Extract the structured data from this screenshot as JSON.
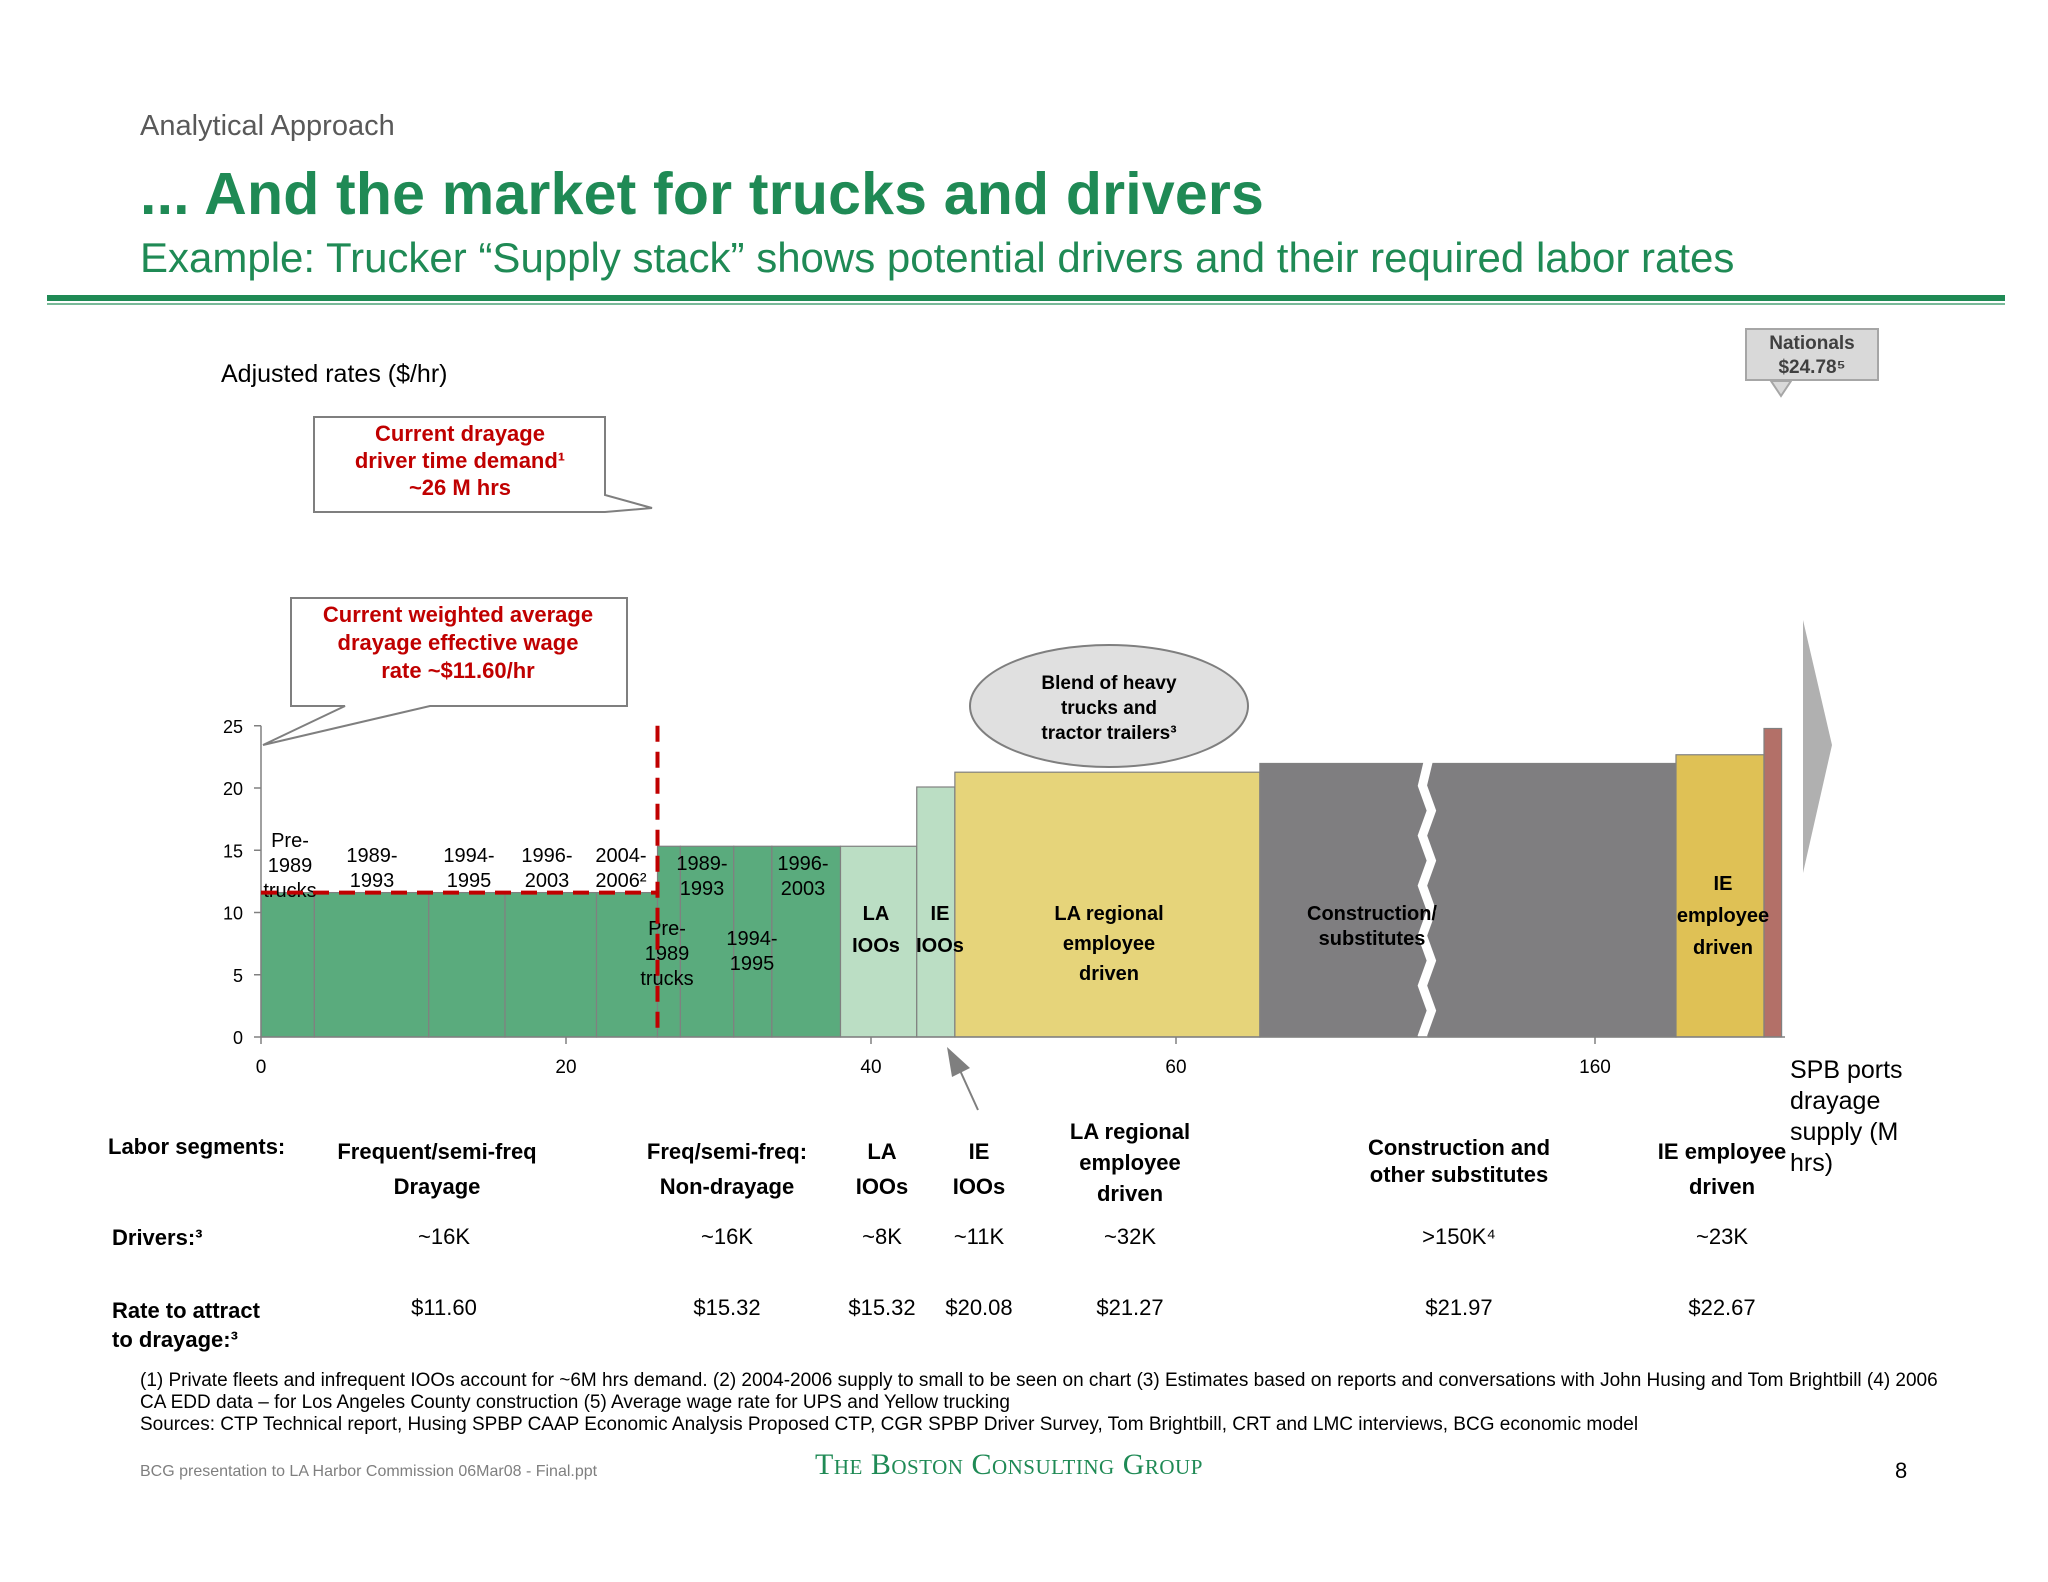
{
  "header": {
    "kicker": "Analytical Approach",
    "title": "... And the market for trucks and drivers",
    "subtitle": "Example: Trucker “Supply stack” shows potential drivers and their required labor rates"
  },
  "chart_data": {
    "type": "bar",
    "ylabel": "Adjusted rates ($/hr)",
    "xlabel": "SPB ports drayage supply (M hrs)",
    "ylim": [
      0,
      25
    ],
    "yticks": [
      0,
      5,
      10,
      15,
      20,
      25
    ],
    "xticks": [
      "0",
      "20",
      "40",
      "60",
      "160"
    ],
    "axis_break": "between 60 and 160",
    "grid": false,
    "segments": [
      {
        "label": [
          "Pre-",
          "1989",
          "trucks"
        ],
        "x_start": 0,
        "x_end": 3.5,
        "rate": 11.6,
        "color": "#5aab7d"
      },
      {
        "label": [
          "1989-",
          "1993"
        ],
        "x_start": 3.5,
        "x_end": 11,
        "rate": 11.6,
        "color": "#5aab7d"
      },
      {
        "label": [
          "1994-",
          "1995"
        ],
        "x_start": 11,
        "x_end": 16,
        "rate": 11.6,
        "color": "#5aab7d"
      },
      {
        "label": [
          "1996-",
          "2003"
        ],
        "x_start": 16,
        "x_end": 22,
        "rate": 11.6,
        "color": "#5aab7d"
      },
      {
        "label": [
          "2004-",
          "2006²"
        ],
        "x_start": 22,
        "x_end": 26,
        "rate": 11.6,
        "color": "#5aab7d"
      },
      {
        "label": [
          "Pre-",
          "1989",
          "trucks"
        ],
        "x_start": 26,
        "x_end": 27.5,
        "rate": 15.32,
        "color": "#5aab7d"
      },
      {
        "label": [
          "1989-",
          "1993"
        ],
        "x_start": 27.5,
        "x_end": 31,
        "rate": 15.32,
        "color": "#5aab7d"
      },
      {
        "label": [
          "1994-",
          "1995"
        ],
        "x_start": 31,
        "x_end": 33.5,
        "rate": 15.32,
        "color": "#5aab7d"
      },
      {
        "label": [
          "1996-",
          "2003"
        ],
        "x_start": 33.5,
        "x_end": 38,
        "rate": 15.32,
        "color": "#5aab7d"
      },
      {
        "label": [
          "LA",
          "IOOs"
        ],
        "x_start": 38,
        "x_end": 43,
        "rate": 15.32,
        "color": "#bbdec4"
      },
      {
        "label": [
          "IE",
          "IOOs"
        ],
        "x_start": 43,
        "x_end": 45.5,
        "rate": 20.08,
        "color": "#bbdec4"
      },
      {
        "label": [
          "LA regional",
          "employee",
          "driven"
        ],
        "x_start": 45.5,
        "x_end": 65.5,
        "rate": 21.27,
        "color": "#e6d47a"
      },
      {
        "label": [
          "Construction/",
          "substitutes"
        ],
        "x_start": 65.5,
        "x_end": 158,
        "rate": 21.97,
        "color": "#7f7e80"
      },
      {
        "label": [
          "IE",
          "employee",
          "driven"
        ],
        "x_start": 158,
        "x_end": 168,
        "rate": 22.67,
        "color": "#dfc155"
      },
      {
        "label": [],
        "x_start": 168,
        "x_end": 170,
        "rate": 24.78,
        "color": "#b37068"
      }
    ],
    "annotations": {
      "demand": [
        "Current drayage",
        "driver time demand¹",
        "~26 M hrs"
      ],
      "wage": [
        "Current weighted average",
        "drayage effective wage",
        "rate ~$11.60/hr"
      ],
      "blend": [
        "Blend of heavy",
        "trucks and",
        "tractor trailers³"
      ],
      "nationals": [
        "Nationals",
        "$24.78⁵"
      ]
    },
    "demand_x": 26,
    "wage_rate": 11.6
  },
  "table": {
    "row_labels": {
      "segments": "Labor segments:",
      "drivers": "Drivers:³",
      "rate": [
        "Rate to attract",
        "to drayage:³"
      ]
    },
    "columns": [
      {
        "segment": [
          "Frequent/semi-freq",
          "Drayage"
        ],
        "drivers": "~16K",
        "rate": "$11.60"
      },
      {
        "segment": [
          "Freq/semi-freq:",
          "Non-drayage"
        ],
        "drivers": "~16K",
        "rate": "$15.32"
      },
      {
        "segment": [
          "LA",
          "IOOs"
        ],
        "drivers": "~8K",
        "rate": "$15.32"
      },
      {
        "segment": [
          "IE",
          "IOOs"
        ],
        "drivers": "~11K",
        "rate": "$20.08"
      },
      {
        "segment": [
          "LA regional",
          "employee",
          "driven"
        ],
        "drivers": "~32K",
        "rate": "$21.27"
      },
      {
        "segment": [
          "Construction and",
          "other substitutes"
        ],
        "drivers": ">150K⁴",
        "rate": "$21.97"
      },
      {
        "segment": [
          "IE employee",
          "driven"
        ],
        "drivers": "~23K",
        "rate": "$22.67"
      }
    ]
  },
  "footnotes": {
    "line1": "(1) Private fleets and infrequent IOOs account for ~6M hrs demand. (2) 2004-2006 supply to small to be seen on chart (3) Estimates based on reports and conversations with John Husing and Tom Brightbill (4) 2006 CA EDD data – for Los Angeles County construction (5) Average wage rate for UPS and Yellow trucking",
    "sources": "Sources: CTP Technical report, Husing SPBP CAAP Economic Analysis Proposed CTP, CGR SPBP Driver Survey, Tom Brightbill, CRT and LMC interviews, BCG economic  model"
  },
  "footer": {
    "file": "BCG presentation to LA Harbor Commission 06Mar08 - Final.ppt",
    "logo": "The Boston Consulting Group",
    "page": "8"
  }
}
